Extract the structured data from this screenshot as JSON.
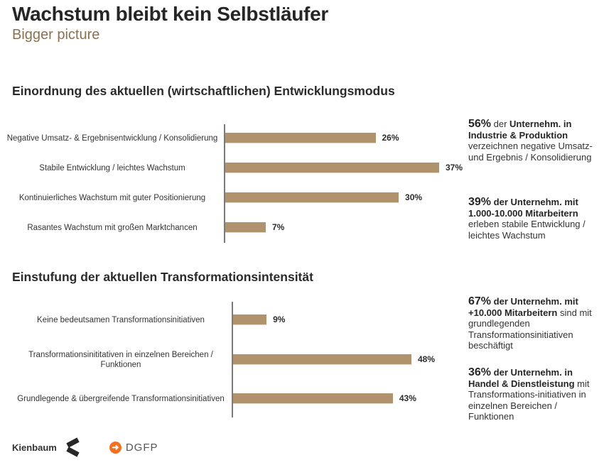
{
  "header": {
    "title": "Wachstum bleibt kein Selbstläufer",
    "subtitle": "Bigger picture"
  },
  "chart_data": [
    {
      "type": "bar",
      "orientation": "horizontal",
      "title": "Einordnung des aktuellen (wirtschaftlichen) Entwicklungsmodus",
      "categories": [
        "Negative Umsatz- & Ergebnisentwicklung / Konsolidierung",
        "Stabile Entwicklung / leichtes Wachstum",
        "Kontinuierliches Wachstum mit guter Positionierung",
        "Rasantes Wachstum mit großen Marktchancen"
      ],
      "values": [
        26,
        37,
        30,
        7
      ],
      "value_labels": [
        "26%",
        "37%",
        "30%",
        "7%"
      ],
      "unit": "%",
      "xlim": [
        0,
        37
      ],
      "grid": false,
      "bar_color": "#b0926c"
    },
    {
      "type": "bar",
      "orientation": "horizontal",
      "title": "Einstufung der aktuellen Transformationsintensität",
      "categories": [
        "Keine bedeutsamen Transformationsinitiativen",
        "Transformationsinititativen in einzelnen Bereichen / Funktionen",
        "Grundlegende & übergreifende Transformationsinitiativen"
      ],
      "values": [
        9,
        48,
        43
      ],
      "value_labels": [
        "9%",
        "48%",
        "43%"
      ],
      "unit": "%",
      "xlim": [
        0,
        48
      ],
      "grid": false,
      "bar_color": "#b0926c"
    }
  ],
  "callouts": [
    {
      "pct": "56%",
      "mid": " der ",
      "bold": "Unternehm. in Industrie & Produktion",
      "rest": " verzeichnen negative Umsatz- und Ergebnis / Konsolidierung"
    },
    {
      "pct": "39%",
      "mid": " ",
      "bold": "der Unternehm. mit 1.000-10.000 Mitarbeitern",
      "rest": " erleben stabile Entwicklung / leichtes Wachstum"
    },
    {
      "pct": "67%",
      "mid": " ",
      "bold": "der Unternehm. mit +10.000 Mitarbeitern",
      "rest": " sind mit grundlegenden Transformationsinitiativen beschäftigt"
    },
    {
      "pct": "36%",
      "mid": " ",
      "bold": "der Unternehm. in Handel & Dienstleistung",
      "rest": " mit Transformations-initiativen in einzelnen Bereichen / Funktionen"
    }
  ],
  "footer": {
    "kienbaum": "Kienbaum",
    "dgfp": "DGFP",
    "dgfp_icon": "arrow-right-circle-icon",
    "kienbaum_icon": "kienbaum-chevron-icon"
  }
}
